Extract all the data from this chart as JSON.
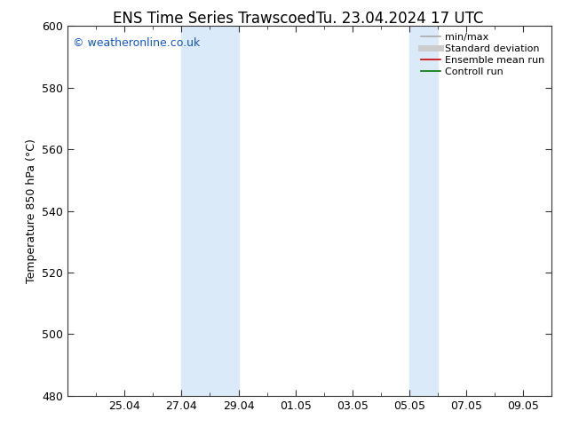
{
  "title_left": "ENS Time Series Trawscoed",
  "title_right": "Tu. 23.04.2024 17 UTC",
  "ylabel": "Temperature 850 hPa (°C)",
  "ylim": [
    480,
    600
  ],
  "yticks": [
    480,
    500,
    520,
    540,
    560,
    580,
    600
  ],
  "xtick_labels": [
    "25.04",
    "27.04",
    "29.04",
    "01.05",
    "03.05",
    "05.05",
    "07.05",
    "09.05"
  ],
  "xtick_days": [
    2,
    4,
    6,
    8,
    10,
    12,
    14,
    16
  ],
  "xlim_start": 0,
  "xlim_end": 17,
  "background_color": "#ffffff",
  "plot_bg_color": "#ffffff",
  "shaded_regions": [
    {
      "xn0": 4,
      "xn1": 6,
      "color": "#dbeaf8"
    },
    {
      "xn0": 12,
      "xn1": 13,
      "color": "#dbeaf8"
    }
  ],
  "watermark_text": "© weatheronline.co.uk",
  "watermark_color": "#1155cc",
  "legend_items": [
    {
      "label": "min/max",
      "color": "#aaaaaa",
      "lw": 1.2
    },
    {
      "label": "Standard deviation",
      "color": "#cccccc",
      "lw": 5
    },
    {
      "label": "Ensemble mean run",
      "color": "#cc0000",
      "lw": 1.2
    },
    {
      "label": "Controll run",
      "color": "#007700",
      "lw": 1.2
    }
  ],
  "title_fontsize": 12,
  "ylabel_fontsize": 9,
  "tick_fontsize": 9,
  "watermark_fontsize": 9,
  "legend_fontsize": 8
}
